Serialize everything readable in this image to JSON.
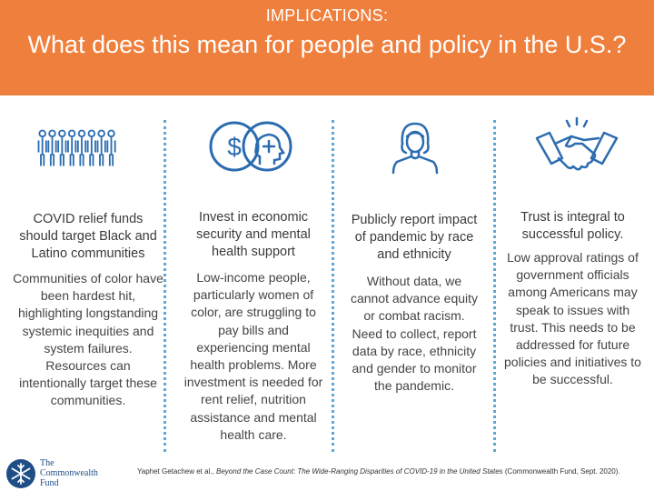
{
  "header": {
    "kicker": "IMPLICATIONS:",
    "title": "What does this mean for people and policy in the U.S.?"
  },
  "icons": [
    "group-of-people-icon",
    "dollar-and-mental-health-icon",
    "person-avatar-icon",
    "handshake-icon"
  ],
  "columns": [
    {
      "heading": "COVID relief funds should target Black and Latino communities",
      "body": "Communities of color have been hardest hit, highlighting longstanding systemic inequities and system failures. Resources can intentionally target these communities."
    },
    {
      "heading": "Invest in economic security and mental health support",
      "body": "Low-income people, particularly women of color, are struggling to pay bills and experiencing mental health problems. More investment is needed for rent relief, nutrition assistance and mental health care."
    },
    {
      "heading": "Publicly report impact of pandemic by race and ethnicity",
      "body": "Without data, we cannot advance equity or combat racism. Need to collect, report data by race, ethnicity and gender to monitor the pandemic."
    },
    {
      "heading": "Trust is integral to successful policy.",
      "body": "Low approval ratings of government officials among Americans may speak to issues with trust. This needs to be addressed for future policies and initiatives to be successful."
    }
  ],
  "footer": {
    "logo_line1": "The",
    "logo_line2": "Commonwealth",
    "logo_line3": "Fund",
    "citation_prefix": "Yaphet Getachew et al., ",
    "citation_title": "Beyond the Case Count: The Wide-Ranging Disparities of COVID-19 in the United States",
    "citation_suffix": " (Commonwealth Fund, Sept. 2020)."
  },
  "colors": {
    "accent": "#ef7f3c",
    "icon_blue": "#2b6cb0",
    "divider": "#5fa7d8"
  }
}
